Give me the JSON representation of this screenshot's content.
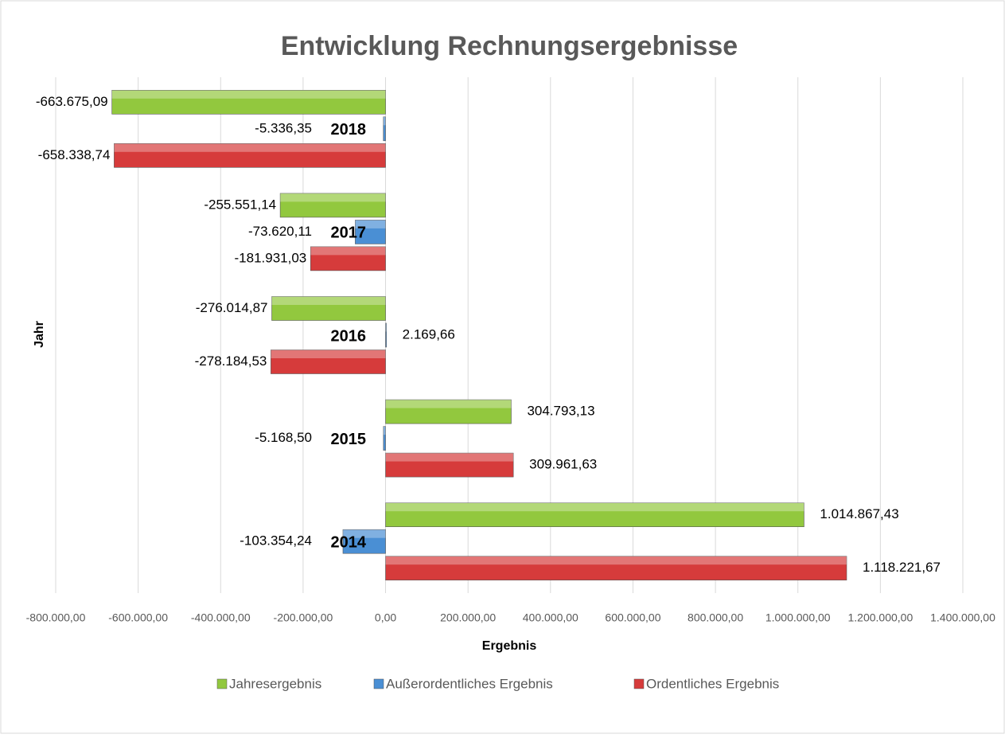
{
  "chart_data": {
    "type": "bar",
    "orientation": "horizontal",
    "title": "Entwicklung Rechnungsergebnisse",
    "x_label": "Ergebnis",
    "y_label": "Jahr",
    "categories": [
      "2014",
      "2015",
      "2016",
      "2017",
      "2018"
    ],
    "series": [
      {
        "name": "Jahresergebnis",
        "color": "#92c83e",
        "values": [
          1014867.43,
          304793.13,
          -276014.87,
          -255551.14,
          -663675.09
        ],
        "value_labels": [
          "1.014.867,43",
          "304.793,13",
          "-276.014,87",
          "-255.551,14",
          "-663.675,09"
        ]
      },
      {
        "name": "Außerordentliches Ergebnis",
        "color": "#4a8fd4",
        "values": [
          -103354.24,
          -5168.5,
          2169.66,
          -73620.11,
          -5336.35
        ],
        "value_labels": [
          "-103.354,24",
          "-5.168,50",
          "2.169,66",
          "-73.620,11",
          "-5.336,35"
        ]
      },
      {
        "name": "Ordentliches Ergebnis",
        "color": "#d63b3b",
        "values": [
          1118221.67,
          309961.63,
          -278184.53,
          -181931.03,
          -658338.74
        ],
        "value_labels": [
          "1.118.221,67",
          "309.961,63",
          "-278.184,53",
          "-181.931,03",
          "-658.338,74"
        ]
      }
    ],
    "xlim": [
      -800000,
      1400000
    ],
    "xticks": [
      {
        "value": -800000,
        "label": "-800.000,00"
      },
      {
        "value": -600000,
        "label": "-600.000,00"
      },
      {
        "value": -400000,
        "label": "-400.000,00"
      },
      {
        "value": -200000,
        "label": "-200.000,00"
      },
      {
        "value": 0,
        "label": "0,00"
      },
      {
        "value": 200000,
        "label": "200.000,00"
      },
      {
        "value": 400000,
        "label": "400.000,00"
      },
      {
        "value": 600000,
        "label": "600.000,00"
      },
      {
        "value": 800000,
        "label": "800.000,00"
      },
      {
        "value": 1000000,
        "label": "1.000.000,00"
      },
      {
        "value": 1200000,
        "label": "1.200.000,00"
      },
      {
        "value": 1400000,
        "label": "1.400.000,00"
      }
    ],
    "grid": true,
    "legend": "bottom"
  }
}
